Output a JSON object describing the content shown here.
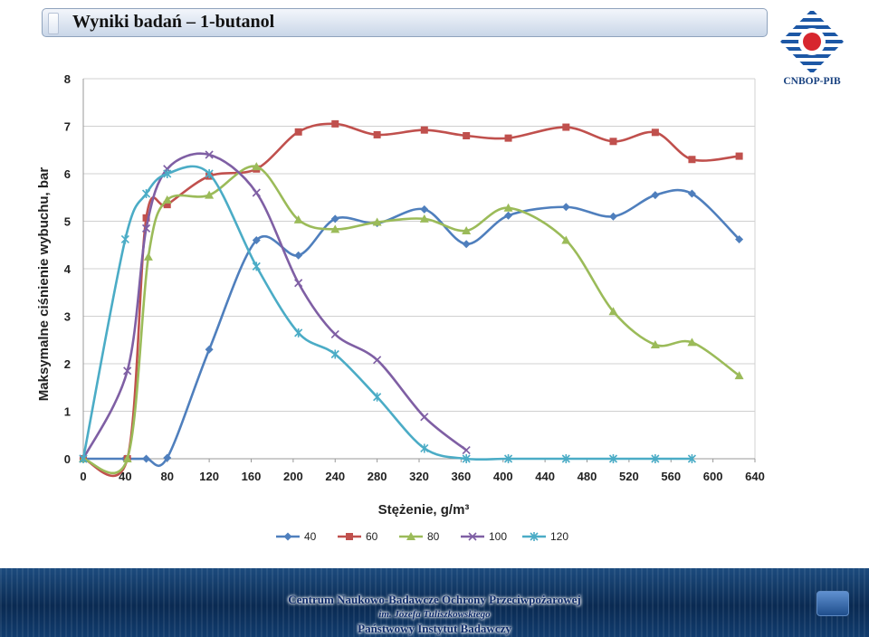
{
  "header": {
    "title": "Wyniki badań – 1-butanol"
  },
  "logo": {
    "text": "CNBOP-PIB"
  },
  "footer": {
    "line1": "Centrum Naukowo-Badawcze Ochrony Przeciwpożarowej",
    "line2": "im. Józefa Tuliszkowskiego",
    "line3": "Państwowy Instytut Badawczy"
  },
  "colors": {
    "40": "#4f7fbd",
    "60": "#c0504d",
    "80": "#9bbb59",
    "100": "#7f5fa4",
    "120": "#4bacc6",
    "grid": "#d0d0d0",
    "axis_text": "#222222"
  },
  "chart_data": {
    "type": "line",
    "title": "",
    "xlabel": "Stężenie, g/m³",
    "ylabel": "Maksymalne ciśnienie wybuchu, bar",
    "xlim": [
      0,
      640
    ],
    "ylim": [
      0,
      8
    ],
    "xticks": [
      0,
      40,
      80,
      120,
      160,
      200,
      240,
      280,
      320,
      360,
      400,
      440,
      480,
      520,
      560,
      600,
      640
    ],
    "yticks": [
      0,
      1,
      2,
      3,
      4,
      5,
      6,
      7,
      8
    ],
    "grid": "horizontal",
    "legend": "bottom",
    "series": [
      {
        "name": "40",
        "marker": "diamond",
        "x": [
          0,
          40,
          60,
          80,
          120,
          165,
          205,
          240,
          280,
          325,
          365,
          405,
          460,
          505,
          545,
          580,
          625
        ],
        "y": [
          0,
          0,
          0,
          0.02,
          2.3,
          4.6,
          4.28,
          5.05,
          4.96,
          5.25,
          4.52,
          5.12,
          5.3,
          5.1,
          5.55,
          5.58,
          4.62
        ]
      },
      {
        "name": "60",
        "marker": "square",
        "x": [
          0,
          42,
          60,
          80,
          120,
          165,
          205,
          240,
          280,
          325,
          365,
          405,
          460,
          505,
          545,
          580,
          625
        ],
        "y": [
          0,
          0,
          5.07,
          5.35,
          5.95,
          6.1,
          6.88,
          7.05,
          6.82,
          6.92,
          6.8,
          6.75,
          6.98,
          6.68,
          6.87,
          6.3,
          6.37
        ]
      },
      {
        "name": "80",
        "marker": "triangle",
        "x": [
          0,
          42,
          62,
          80,
          120,
          165,
          205,
          240,
          280,
          325,
          365,
          405,
          460,
          505,
          545,
          580,
          625
        ],
        "y": [
          0,
          0,
          4.25,
          5.45,
          5.55,
          6.15,
          5.03,
          4.83,
          4.98,
          5.05,
          4.8,
          5.28,
          4.6,
          3.1,
          2.4,
          2.45,
          1.75
        ]
      },
      {
        "name": "100",
        "marker": "x",
        "x": [
          0,
          42,
          60,
          80,
          120,
          165,
          205,
          240,
          280,
          325,
          365
        ],
        "y": [
          0,
          1.85,
          4.85,
          6.1,
          6.4,
          5.6,
          3.7,
          2.62,
          2.08,
          0.88,
          0.18
        ]
      },
      {
        "name": "120",
        "marker": "star",
        "x": [
          0,
          40,
          60,
          80,
          120,
          165,
          205,
          240,
          280,
          325,
          365,
          405,
          460,
          505,
          545,
          580
        ],
        "y": [
          0,
          4.62,
          5.58,
          6.0,
          6.0,
          4.05,
          2.65,
          2.2,
          1.3,
          0.22,
          0,
          0,
          0,
          0,
          0,
          0
        ]
      }
    ]
  }
}
